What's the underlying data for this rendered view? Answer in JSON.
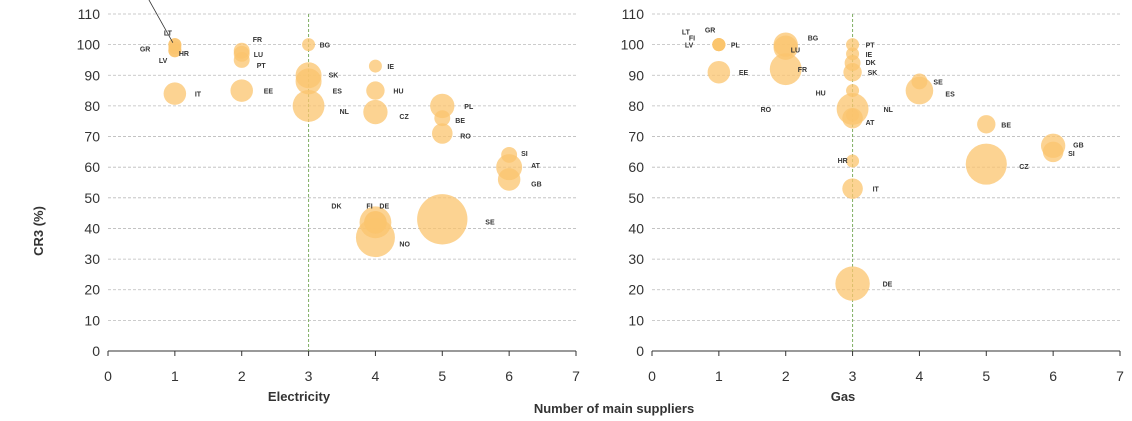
{
  "chart_data": {
    "type": "scatter",
    "subtype": "bubble",
    "shared_ylabel": "CR3 (%)",
    "shared_xlabel": "Number of main suppliers",
    "ylim": [
      0,
      110
    ],
    "yticks": [
      0,
      10,
      20,
      30,
      40,
      50,
      60,
      70,
      80,
      90,
      100,
      110
    ],
    "xlim": [
      0,
      7
    ],
    "xticks": [
      0,
      1,
      2,
      3,
      4,
      5,
      6,
      7
    ],
    "grid": "horizontal dashed",
    "reference_line_x": 3,
    "colors": {
      "bubble": "#fbc46e",
      "bubble_overlap": "#f29a2e",
      "grid": "#bbbbbb",
      "reference": "#7fae64",
      "axis": "#333333"
    },
    "panels": [
      {
        "xlabel": "Electricity",
        "points": [
          {
            "label": "CY, MT",
            "x": 1.0,
            "y": 100,
            "size": 1,
            "leader": true
          },
          {
            "label": "LT",
            "x": 1.0,
            "y": 100,
            "size": 1
          },
          {
            "label": "GR",
            "x": 1.0,
            "y": 99,
            "size": 1
          },
          {
            "label": "HR",
            "x": 1.0,
            "y": 98,
            "size": 1
          },
          {
            "label": "LV",
            "x": 1.0,
            "y": 98,
            "size": 1
          },
          {
            "label": "IT",
            "x": 1.0,
            "y": 84,
            "size": 3
          },
          {
            "label": "FR",
            "x": 2.0,
            "y": 98,
            "size": 1.5
          },
          {
            "label": "LU",
            "x": 2.0,
            "y": 97,
            "size": 1.5
          },
          {
            "label": "PT",
            "x": 2.0,
            "y": 95,
            "size": 1.5
          },
          {
            "label": "EE",
            "x": 2.0,
            "y": 85,
            "size": 3
          },
          {
            "label": "BG",
            "x": 3.0,
            "y": 100,
            "size": 1
          },
          {
            "label": "SK",
            "x": 3.0,
            "y": 90,
            "size": 4
          },
          {
            "label": "ES",
            "x": 3.0,
            "y": 88,
            "size": 4
          },
          {
            "label": "NL",
            "x": 3.0,
            "y": 80,
            "size": 6
          },
          {
            "label": "IE",
            "x": 4.0,
            "y": 93,
            "size": 1
          },
          {
            "label": "HU",
            "x": 4.0,
            "y": 85,
            "size": 2
          },
          {
            "label": "CZ",
            "x": 4.0,
            "y": 78,
            "size": 3.5
          },
          {
            "label": "PL",
            "x": 5.0,
            "y": 80,
            "size": 3.5
          },
          {
            "label": "BE",
            "x": 5.0,
            "y": 76,
            "size": 1.5
          },
          {
            "label": "RO",
            "x": 5.0,
            "y": 71,
            "size": 2.5
          },
          {
            "label": "SI",
            "x": 6.0,
            "y": 64,
            "size": 1.5
          },
          {
            "label": "AT",
            "x": 6.0,
            "y": 60,
            "size": 4
          },
          {
            "label": "GB",
            "x": 6.0,
            "y": 56,
            "size": 3
          },
          {
            "label": "DK",
            "x": 4.0,
            "y": 42,
            "size": 3
          },
          {
            "label": "FI",
            "x": 4.0,
            "y": 42,
            "size": 3
          },
          {
            "label": "DE",
            "x": 4.0,
            "y": 42,
            "size": 6
          },
          {
            "label": "NO",
            "x": 4.0,
            "y": 37,
            "size": 9
          },
          {
            "label": "SE",
            "x": 5.0,
            "y": 43,
            "size": 15
          }
        ]
      },
      {
        "xlabel": "Gas",
        "points": [
          {
            "label": "LT",
            "x": 1.0,
            "y": 100,
            "size": 1
          },
          {
            "label": "GR",
            "x": 1.0,
            "y": 100,
            "size": 1
          },
          {
            "label": "FI",
            "x": 1.0,
            "y": 100,
            "size": 1
          },
          {
            "label": "LV",
            "x": 1.0,
            "y": 100,
            "size": 1
          },
          {
            "label": "PL",
            "x": 1.0,
            "y": 100,
            "size": 1
          },
          {
            "label": "EE",
            "x": 1.0,
            "y": 91,
            "size": 3
          },
          {
            "label": "BG",
            "x": 2.0,
            "y": 100,
            "size": 3.5
          },
          {
            "label": "LU",
            "x": 2.0,
            "y": 99,
            "size": 3.5
          },
          {
            "label": "FR",
            "x": 2.0,
            "y": 92,
            "size": 6
          },
          {
            "label": "PT",
            "x": 3.0,
            "y": 100,
            "size": 1
          },
          {
            "label": "IE",
            "x": 3.0,
            "y": 97,
            "size": 1
          },
          {
            "label": "DK",
            "x": 3.0,
            "y": 94,
            "size": 1.5
          },
          {
            "label": "SK",
            "x": 3.0,
            "y": 91,
            "size": 2
          },
          {
            "label": "HU",
            "x": 3.0,
            "y": 85,
            "size": 1
          },
          {
            "label": "RO",
            "x": 3.0,
            "y": 77,
            "size": 1
          },
          {
            "label": "NL",
            "x": 3.0,
            "y": 79,
            "size": 6
          },
          {
            "label": "AT",
            "x": 3.0,
            "y": 76,
            "size": 2.5
          },
          {
            "label": "HR",
            "x": 3.0,
            "y": 62,
            "size": 1
          },
          {
            "label": "IT",
            "x": 3.0,
            "y": 53,
            "size": 2.5
          },
          {
            "label": "DE",
            "x": 3.0,
            "y": 22,
            "size": 7
          },
          {
            "label": "SE",
            "x": 4.0,
            "y": 88,
            "size": 1.5
          },
          {
            "label": "ES",
            "x": 4.0,
            "y": 85,
            "size": 4.5
          },
          {
            "label": "BE",
            "x": 5.0,
            "y": 74,
            "size": 2
          },
          {
            "label": "CZ",
            "x": 5.0,
            "y": 61,
            "size": 10
          },
          {
            "label": "GB",
            "x": 6.0,
            "y": 67,
            "size": 3.5
          },
          {
            "label": "SI",
            "x": 6.0,
            "y": 65,
            "size": 2.5
          }
        ]
      }
    ]
  }
}
